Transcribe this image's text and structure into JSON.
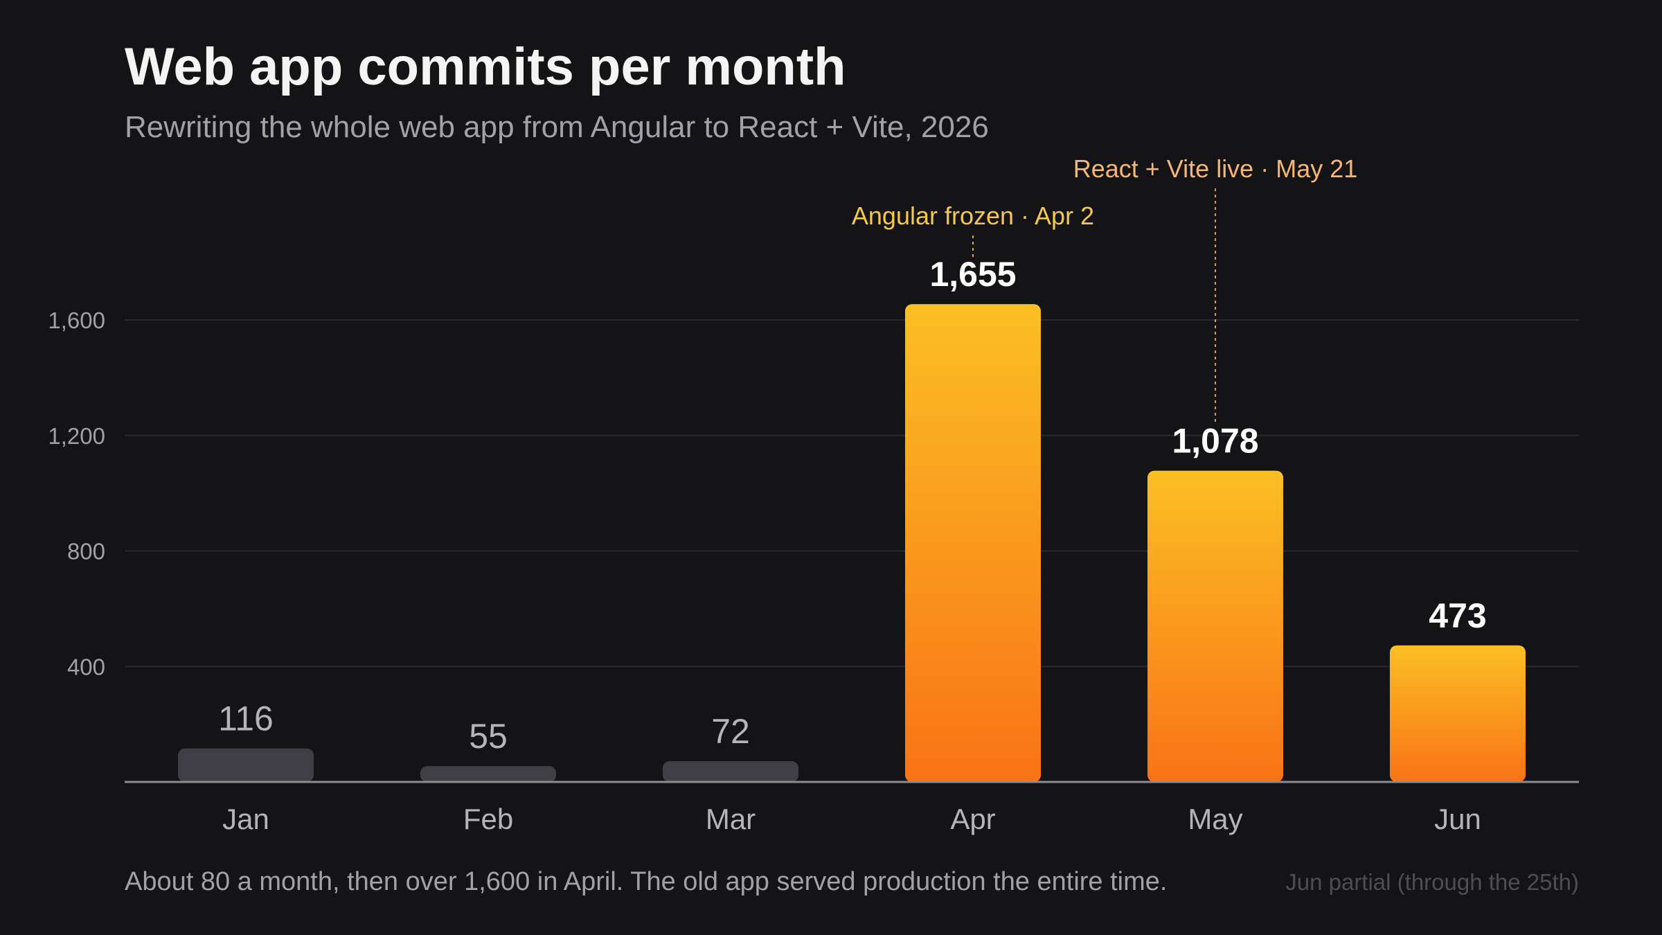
{
  "chart_data": {
    "type": "bar",
    "title": "Web app commits per month",
    "subtitle": "Rewriting the whole web app from Angular to React + Vite, 2026",
    "categories": [
      "Jan",
      "Feb",
      "Mar",
      "Apr",
      "May",
      "Jun"
    ],
    "values": [
      116,
      55,
      72,
      1655,
      1078,
      473
    ],
    "value_labels": [
      "116",
      "55",
      "72",
      "1,655",
      "1,078",
      "473"
    ],
    "highlighted": [
      false,
      false,
      false,
      true,
      true,
      true
    ],
    "ylim": [
      0,
      1655
    ],
    "yticks": [
      400,
      800,
      1200,
      1600
    ],
    "ytick_labels": [
      "400",
      "800",
      "1,200",
      "1,600"
    ],
    "grid": true,
    "annotations": [
      {
        "text": "Angular frozen · Apr 2",
        "category": "Apr"
      },
      {
        "text": "React + Vite live · May 21",
        "category": "May"
      }
    ],
    "footnote": "About 80 a month, then over 1,600 in April. The old app served production the entire time.",
    "footnote_right": "Jun partial (through the 25th)",
    "colors": {
      "background": "#141416",
      "bar_muted": "#3f3f45",
      "bar_hot_top": "#fbbf24",
      "bar_hot_bottom": "#f97316",
      "annotation_a": "#f6c84a",
      "annotation_b": "#f8b673"
    }
  }
}
